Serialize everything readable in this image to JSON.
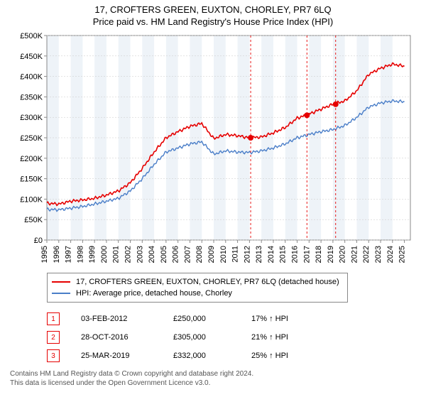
{
  "title_main": "17, CROFTERS GREEN, EUXTON, CHORLEY, PR7 6LQ",
  "title_sub": "Price paid vs. HM Land Registry's House Price Index (HPI)",
  "chart": {
    "type": "line",
    "background_color": "#ffffff",
    "plot_bg_bands_color": "#eef3f8",
    "grid_color": "#c9c9c9",
    "axis_color": "#888888",
    "xlim": [
      1995,
      2025.5
    ],
    "ylim": [
      0,
      500
    ],
    "y_ticks": [
      0,
      50,
      100,
      150,
      200,
      250,
      300,
      350,
      400,
      450,
      500
    ],
    "y_tick_labels": [
      "£0",
      "£50K",
      "£100K",
      "£150K",
      "£200K",
      "£250K",
      "£300K",
      "£350K",
      "£400K",
      "£450K",
      "£500K"
    ],
    "x_ticks": [
      1995,
      1996,
      1997,
      1998,
      1999,
      2000,
      2001,
      2002,
      2003,
      2004,
      2005,
      2006,
      2007,
      2008,
      2009,
      2010,
      2011,
      2012,
      2013,
      2014,
      2015,
      2016,
      2017,
      2018,
      2019,
      2020,
      2021,
      2022,
      2023,
      2024,
      2025
    ],
    "label_fontsize": 11,
    "series": [
      {
        "name": "price_paid",
        "label": "17, CROFTERS GREEN, EUXTON, CHORLEY, PR7 6LQ (detached house)",
        "color": "#e60000",
        "line_width": 1.6,
        "years": [
          1995,
          1996,
          1997,
          1998,
          1999,
          2000,
          2001,
          2002,
          2003,
          2004,
          2005,
          2006,
          2007,
          2008,
          2009,
          2010,
          2011,
          2012,
          2013,
          2014,
          2015,
          2016,
          2017,
          2018,
          2019,
          2020,
          2021,
          2022,
          2023,
          2024,
          2025
        ],
        "values": [
          90,
          88,
          95,
          98,
          102,
          110,
          120,
          140,
          175,
          215,
          250,
          265,
          278,
          285,
          248,
          258,
          255,
          250,
          252,
          262,
          275,
          298,
          308,
          320,
          332,
          340,
          365,
          405,
          420,
          430,
          425
        ]
      },
      {
        "name": "hpi",
        "label": "HPI: Average price, detached house, Chorley",
        "color": "#4a7ec8",
        "line_width": 1.4,
        "years": [
          1995,
          1996,
          1997,
          1998,
          1999,
          2000,
          2001,
          2002,
          2003,
          2004,
          2005,
          2006,
          2007,
          2008,
          2009,
          2010,
          2011,
          2012,
          2013,
          2014,
          2015,
          2016,
          2017,
          2018,
          2019,
          2020,
          2021,
          2022,
          2023,
          2024,
          2025
        ],
        "values": [
          75,
          74,
          78,
          82,
          88,
          95,
          102,
          120,
          150,
          185,
          215,
          225,
          235,
          240,
          210,
          218,
          215,
          214,
          218,
          225,
          235,
          250,
          258,
          265,
          270,
          280,
          300,
          325,
          335,
          340,
          338
        ]
      }
    ],
    "markers": [
      {
        "n": "1",
        "x": 2012.1,
        "y": 250,
        "box_y_offset": -160
      },
      {
        "n": "2",
        "x": 2016.82,
        "y": 305,
        "box_y_offset": -127
      },
      {
        "n": "3",
        "x": 2019.23,
        "y": 332,
        "box_y_offset": -112
      }
    ],
    "marker_line_color": "#e60000",
    "marker_dot_color": "#e60000",
    "marker_box_border": "#e60000",
    "marker_box_text": "#e60000"
  },
  "legend": {
    "rows": [
      {
        "color": "#e60000",
        "label": "17, CROFTERS GREEN, EUXTON, CHORLEY, PR7 6LQ (detached house)"
      },
      {
        "color": "#4a7ec8",
        "label": "HPI: Average price, detached house, Chorley"
      }
    ]
  },
  "marker_table": [
    {
      "n": "1",
      "date": "03-FEB-2012",
      "price": "£250,000",
      "pct": "17% ↑ HPI"
    },
    {
      "n": "2",
      "date": "28-OCT-2016",
      "price": "£305,000",
      "pct": "21% ↑ HPI"
    },
    {
      "n": "3",
      "date": "25-MAR-2019",
      "price": "£332,000",
      "pct": "25% ↑ HPI"
    }
  ],
  "marker_box_color": "#e60000",
  "footnote_line1": "Contains HM Land Registry data © Crown copyright and database right 2024.",
  "footnote_line2": "This data is licensed under the Open Government Licence v3.0."
}
